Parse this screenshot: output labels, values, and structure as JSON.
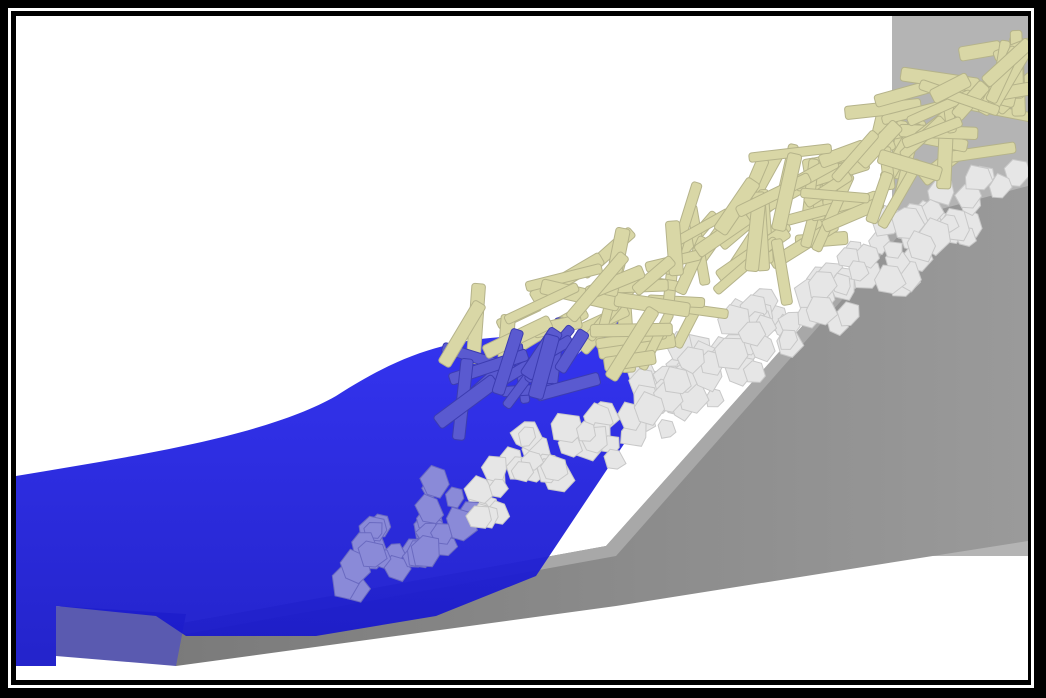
{
  "scene": {
    "background_color": "#ffffff",
    "frame_color": "#000000",
    "water_color": "#2323e6",
    "slope_color": "#8c8c8c",
    "armor_stone_color": "#e6e6e6",
    "log_color": "#d9d7a6"
  }
}
